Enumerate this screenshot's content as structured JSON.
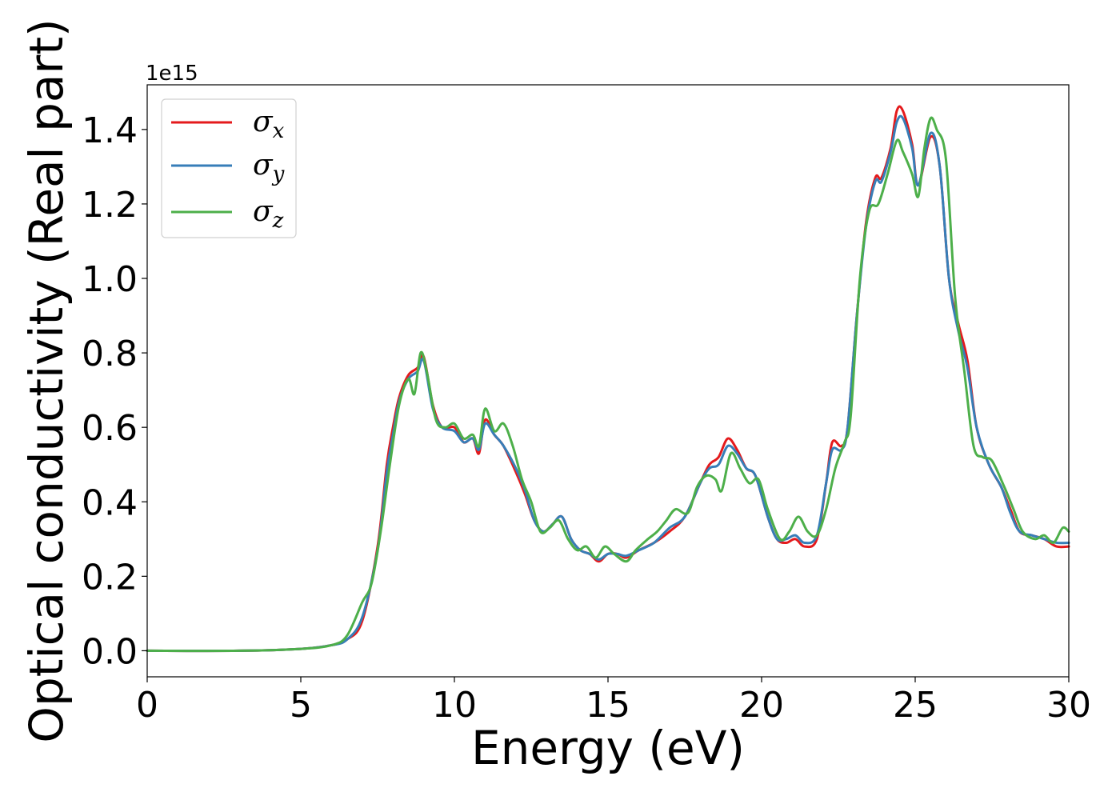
{
  "chart_data": {
    "type": "line",
    "title": "",
    "xlabel": "Energy (eV)",
    "ylabel": "Optical conductivity (Real part)",
    "y_offset_label": "1e15",
    "xlim": [
      0,
      30
    ],
    "ylim": [
      -0.07,
      1.52
    ],
    "x_ticks": [
      0,
      5,
      10,
      15,
      20,
      25,
      30
    ],
    "x_tick_labels": [
      "0",
      "5",
      "10",
      "15",
      "20",
      "25",
      "30"
    ],
    "y_ticks": [
      0.0,
      0.2,
      0.4,
      0.6,
      0.8,
      1.0,
      1.2,
      1.4
    ],
    "y_tick_labels": [
      "0.0",
      "0.2",
      "0.4",
      "0.6",
      "0.8",
      "1.0",
      "1.2",
      "1.4"
    ],
    "grid": false,
    "legend_position": "top-left",
    "series": [
      {
        "name": "σ_x",
        "legend_base": "σ",
        "legend_sub": "x",
        "color": "#e41a1c",
        "points": [
          [
            0,
            0.0
          ],
          [
            3,
            0.0
          ],
          [
            5,
            0.005
          ],
          [
            6,
            0.015
          ],
          [
            6.5,
            0.03
          ],
          [
            7,
            0.08
          ],
          [
            7.5,
            0.28
          ],
          [
            7.8,
            0.5
          ],
          [
            8,
            0.6
          ],
          [
            8.2,
            0.68
          ],
          [
            8.5,
            0.74
          ],
          [
            8.8,
            0.76
          ],
          [
            9.0,
            0.79
          ],
          [
            9.3,
            0.66
          ],
          [
            9.6,
            0.6
          ],
          [
            10.0,
            0.6
          ],
          [
            10.3,
            0.56
          ],
          [
            10.6,
            0.57
          ],
          [
            10.8,
            0.53
          ],
          [
            11.0,
            0.62
          ],
          [
            11.3,
            0.58
          ],
          [
            11.6,
            0.55
          ],
          [
            12.0,
            0.48
          ],
          [
            12.3,
            0.42
          ],
          [
            12.6,
            0.35
          ],
          [
            12.9,
            0.32
          ],
          [
            13.2,
            0.34
          ],
          [
            13.5,
            0.36
          ],
          [
            13.8,
            0.3
          ],
          [
            14.1,
            0.27
          ],
          [
            14.4,
            0.26
          ],
          [
            14.7,
            0.24
          ],
          [
            15.0,
            0.26
          ],
          [
            15.3,
            0.26
          ],
          [
            15.6,
            0.25
          ],
          [
            16.0,
            0.27
          ],
          [
            16.5,
            0.29
          ],
          [
            17.0,
            0.32
          ],
          [
            17.5,
            0.36
          ],
          [
            18.0,
            0.45
          ],
          [
            18.3,
            0.5
          ],
          [
            18.6,
            0.52
          ],
          [
            18.9,
            0.57
          ],
          [
            19.2,
            0.54
          ],
          [
            19.5,
            0.49
          ],
          [
            19.8,
            0.47
          ],
          [
            20.2,
            0.36
          ],
          [
            20.5,
            0.3
          ],
          [
            20.8,
            0.29
          ],
          [
            21.1,
            0.3
          ],
          [
            21.4,
            0.28
          ],
          [
            21.8,
            0.3
          ],
          [
            22.1,
            0.45
          ],
          [
            22.3,
            0.56
          ],
          [
            22.6,
            0.55
          ],
          [
            22.8,
            0.6
          ],
          [
            23.1,
            0.9
          ],
          [
            23.4,
            1.15
          ],
          [
            23.7,
            1.27
          ],
          [
            23.9,
            1.27
          ],
          [
            24.2,
            1.35
          ],
          [
            24.4,
            1.45
          ],
          [
            24.6,
            1.45
          ],
          [
            24.9,
            1.36
          ],
          [
            25.1,
            1.25
          ],
          [
            25.5,
            1.38
          ],
          [
            25.8,
            1.3
          ],
          [
            26.1,
            1.0
          ],
          [
            26.4,
            0.88
          ],
          [
            26.7,
            0.78
          ],
          [
            27.0,
            0.6
          ],
          [
            27.4,
            0.5
          ],
          [
            27.8,
            0.44
          ],
          [
            28.1,
            0.38
          ],
          [
            28.4,
            0.32
          ],
          [
            28.8,
            0.31
          ],
          [
            29.2,
            0.3
          ],
          [
            29.6,
            0.28
          ],
          [
            30.0,
            0.28
          ]
        ]
      },
      {
        "name": "σ_y",
        "legend_base": "σ",
        "legend_sub": "y",
        "color": "#377eb8",
        "points": [
          [
            0,
            0.0
          ],
          [
            3,
            0.0
          ],
          [
            5,
            0.005
          ],
          [
            6,
            0.015
          ],
          [
            6.5,
            0.03
          ],
          [
            7,
            0.09
          ],
          [
            7.5,
            0.27
          ],
          [
            7.8,
            0.48
          ],
          [
            8,
            0.58
          ],
          [
            8.2,
            0.67
          ],
          [
            8.5,
            0.73
          ],
          [
            8.8,
            0.75
          ],
          [
            9.0,
            0.78
          ],
          [
            9.3,
            0.65
          ],
          [
            9.6,
            0.6
          ],
          [
            10.0,
            0.59
          ],
          [
            10.3,
            0.56
          ],
          [
            10.6,
            0.57
          ],
          [
            10.8,
            0.54
          ],
          [
            11.0,
            0.61
          ],
          [
            11.3,
            0.58
          ],
          [
            11.6,
            0.55
          ],
          [
            12.0,
            0.49
          ],
          [
            12.3,
            0.43
          ],
          [
            12.6,
            0.35
          ],
          [
            12.9,
            0.32
          ],
          [
            13.2,
            0.34
          ],
          [
            13.5,
            0.36
          ],
          [
            13.8,
            0.3
          ],
          [
            14.1,
            0.27
          ],
          [
            14.4,
            0.26
          ],
          [
            14.7,
            0.245
          ],
          [
            15.0,
            0.26
          ],
          [
            15.3,
            0.26
          ],
          [
            15.6,
            0.255
          ],
          [
            16.0,
            0.27
          ],
          [
            16.5,
            0.29
          ],
          [
            17.0,
            0.33
          ],
          [
            17.5,
            0.36
          ],
          [
            18.0,
            0.45
          ],
          [
            18.3,
            0.49
          ],
          [
            18.6,
            0.5
          ],
          [
            18.9,
            0.55
          ],
          [
            19.2,
            0.53
          ],
          [
            19.5,
            0.49
          ],
          [
            19.8,
            0.47
          ],
          [
            20.2,
            0.36
          ],
          [
            20.5,
            0.3
          ],
          [
            20.8,
            0.3
          ],
          [
            21.1,
            0.31
          ],
          [
            21.4,
            0.29
          ],
          [
            21.8,
            0.31
          ],
          [
            22.1,
            0.45
          ],
          [
            22.3,
            0.54
          ],
          [
            22.6,
            0.54
          ],
          [
            22.8,
            0.6
          ],
          [
            23.1,
            0.9
          ],
          [
            23.4,
            1.14
          ],
          [
            23.7,
            1.26
          ],
          [
            23.9,
            1.26
          ],
          [
            24.2,
            1.34
          ],
          [
            24.4,
            1.42
          ],
          [
            24.6,
            1.43
          ],
          [
            24.9,
            1.35
          ],
          [
            25.1,
            1.25
          ],
          [
            25.5,
            1.39
          ],
          [
            25.8,
            1.3
          ],
          [
            26.1,
            1.0
          ],
          [
            26.4,
            0.86
          ],
          [
            26.7,
            0.76
          ],
          [
            27.0,
            0.6
          ],
          [
            27.4,
            0.5
          ],
          [
            27.8,
            0.44
          ],
          [
            28.1,
            0.37
          ],
          [
            28.4,
            0.32
          ],
          [
            28.8,
            0.31
          ],
          [
            29.2,
            0.3
          ],
          [
            29.6,
            0.29
          ],
          [
            30.0,
            0.29
          ]
        ]
      },
      {
        "name": "σ_z",
        "legend_base": "σ",
        "legend_sub": "z",
        "color": "#4daf4a",
        "points": [
          [
            0,
            0.0
          ],
          [
            3,
            0.0
          ],
          [
            5,
            0.005
          ],
          [
            6,
            0.015
          ],
          [
            6.5,
            0.04
          ],
          [
            7,
            0.13
          ],
          [
            7.3,
            0.18
          ],
          [
            7.6,
            0.32
          ],
          [
            7.9,
            0.5
          ],
          [
            8.2,
            0.66
          ],
          [
            8.5,
            0.73
          ],
          [
            8.7,
            0.69
          ],
          [
            8.9,
            0.8
          ],
          [
            9.1,
            0.75
          ],
          [
            9.4,
            0.62
          ],
          [
            9.7,
            0.6
          ],
          [
            10.0,
            0.61
          ],
          [
            10.3,
            0.57
          ],
          [
            10.6,
            0.58
          ],
          [
            10.8,
            0.55
          ],
          [
            11.0,
            0.65
          ],
          [
            11.3,
            0.59
          ],
          [
            11.6,
            0.61
          ],
          [
            11.9,
            0.55
          ],
          [
            12.2,
            0.46
          ],
          [
            12.5,
            0.4
          ],
          [
            12.8,
            0.32
          ],
          [
            13.1,
            0.33
          ],
          [
            13.4,
            0.35
          ],
          [
            13.7,
            0.3
          ],
          [
            14.0,
            0.27
          ],
          [
            14.3,
            0.28
          ],
          [
            14.6,
            0.25
          ],
          [
            14.9,
            0.28
          ],
          [
            15.2,
            0.26
          ],
          [
            15.6,
            0.24
          ],
          [
            15.9,
            0.27
          ],
          [
            16.3,
            0.3
          ],
          [
            16.6,
            0.32
          ],
          [
            16.9,
            0.35
          ],
          [
            17.2,
            0.38
          ],
          [
            17.6,
            0.37
          ],
          [
            17.9,
            0.44
          ],
          [
            18.2,
            0.47
          ],
          [
            18.5,
            0.46
          ],
          [
            18.7,
            0.43
          ],
          [
            19.0,
            0.53
          ],
          [
            19.3,
            0.49
          ],
          [
            19.6,
            0.45
          ],
          [
            19.9,
            0.46
          ],
          [
            20.2,
            0.38
          ],
          [
            20.6,
            0.3
          ],
          [
            20.9,
            0.32
          ],
          [
            21.2,
            0.36
          ],
          [
            21.5,
            0.32
          ],
          [
            21.8,
            0.31
          ],
          [
            22.1,
            0.38
          ],
          [
            22.4,
            0.49
          ],
          [
            22.7,
            0.56
          ],
          [
            22.9,
            0.63
          ],
          [
            23.2,
            1.0
          ],
          [
            23.5,
            1.18
          ],
          [
            23.8,
            1.2
          ],
          [
            24.1,
            1.28
          ],
          [
            24.4,
            1.37
          ],
          [
            24.6,
            1.34
          ],
          [
            24.9,
            1.28
          ],
          [
            25.1,
            1.22
          ],
          [
            25.3,
            1.35
          ],
          [
            25.5,
            1.43
          ],
          [
            25.7,
            1.4
          ],
          [
            26.0,
            1.32
          ],
          [
            26.3,
            0.95
          ],
          [
            26.6,
            0.75
          ],
          [
            26.9,
            0.55
          ],
          [
            27.2,
            0.52
          ],
          [
            27.5,
            0.51
          ],
          [
            27.9,
            0.44
          ],
          [
            28.2,
            0.38
          ],
          [
            28.5,
            0.32
          ],
          [
            28.9,
            0.3
          ],
          [
            29.2,
            0.31
          ],
          [
            29.5,
            0.29
          ],
          [
            29.8,
            0.33
          ],
          [
            30.0,
            0.32
          ]
        ]
      }
    ]
  }
}
